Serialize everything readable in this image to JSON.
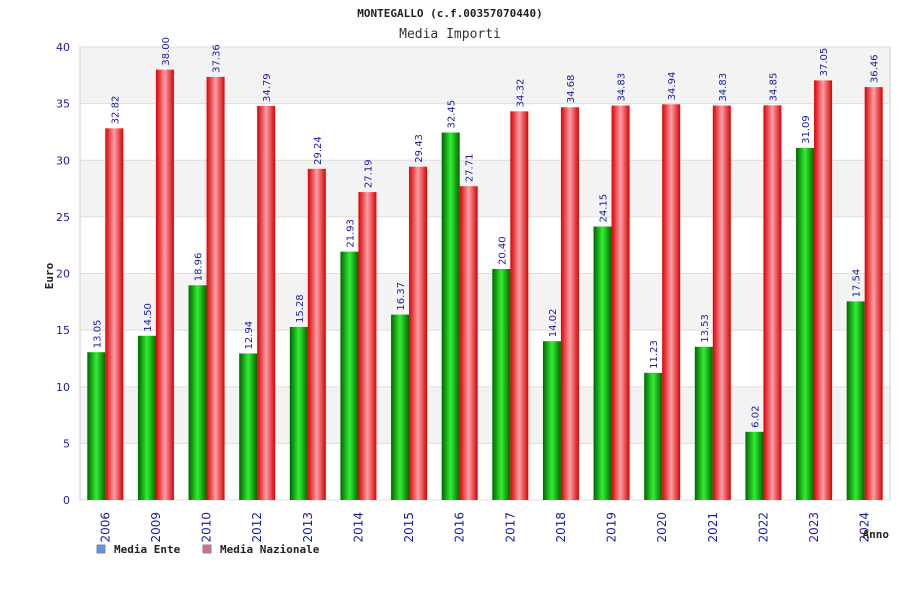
{
  "chart_data": {
    "type": "bar",
    "title": "MONTEGALLO (c.f.00357070440)",
    "subtitle": "Media Importi",
    "xlabel": "Anno",
    "ylabel": "Euro",
    "ylim": [
      0,
      40
    ],
    "yticks": [
      "0",
      "5",
      "10",
      "15",
      "20",
      "25",
      "30",
      "35",
      "40"
    ],
    "grid": true,
    "legend_position": "bottom-left",
    "categories": [
      "2006",
      "2009",
      "2010",
      "2012",
      "2013",
      "2014",
      "2015",
      "2016",
      "2017",
      "2018",
      "2019",
      "2020",
      "2021",
      "2022",
      "2023",
      "2024"
    ],
    "series": [
      {
        "name": "Media Ente",
        "color": "#00aa00",
        "legend_color": "#5599ee",
        "values": [
          13.05,
          14.5,
          18.96,
          12.94,
          15.28,
          21.93,
          16.37,
          32.45,
          20.4,
          14.02,
          24.15,
          11.23,
          13.53,
          6.02,
          31.09,
          17.54
        ],
        "labels": [
          "13.05",
          "14.50",
          "18.96",
          "12.94",
          "15.28",
          "21.93",
          "16.37",
          "32.45",
          "20.40",
          "14.02",
          "24.15",
          "11.23",
          "13.53",
          "6.02",
          "31.09",
          "17.54"
        ]
      },
      {
        "name": "Media Nazionale",
        "color": "#ee1111",
        "legend_color": "#dd6699",
        "values": [
          32.82,
          38.0,
          37.36,
          34.79,
          29.24,
          27.19,
          29.43,
          27.71,
          34.32,
          34.68,
          34.83,
          34.94,
          34.83,
          34.85,
          37.05,
          36.46
        ],
        "labels": [
          "32.82",
          "38.00",
          "37.36",
          "34.79",
          "29.24",
          "27.19",
          "29.43",
          "27.71",
          "34.32",
          "34.68",
          "34.83",
          "34.94",
          "34.83",
          "34.85",
          "37.05",
          "36.46"
        ]
      }
    ]
  }
}
